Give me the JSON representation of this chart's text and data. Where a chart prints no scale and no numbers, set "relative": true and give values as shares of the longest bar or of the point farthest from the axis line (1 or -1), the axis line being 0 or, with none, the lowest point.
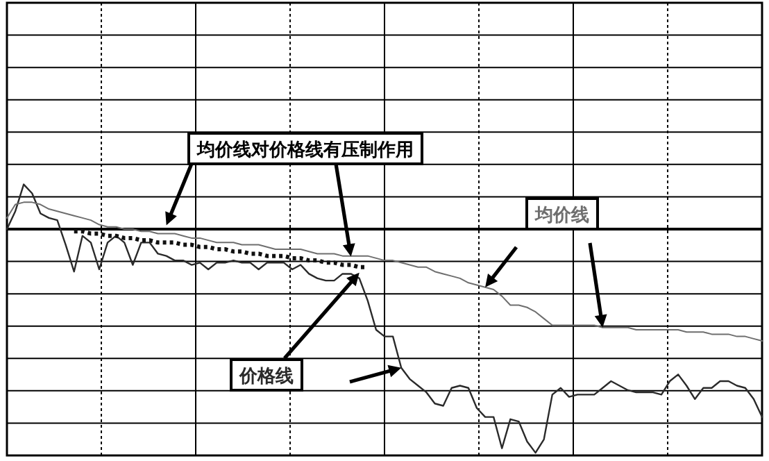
{
  "chart_data": {
    "type": "line",
    "relative": true,
    "grid": true,
    "categories": [
      null,
      null,
      null,
      null,
      null,
      null,
      null,
      null,
      null,
      null,
      null,
      null,
      null,
      null,
      null,
      null,
      null,
      null,
      null,
      null,
      null,
      null,
      null,
      null,
      null,
      null,
      null,
      null,
      null,
      null,
      null,
      null,
      null,
      null,
      null,
      null,
      null,
      null,
      null,
      null,
      null,
      null,
      null,
      null,
      null,
      null,
      null,
      null,
      null,
      null,
      null,
      null,
      null,
      null,
      null,
      null,
      null,
      null,
      null,
      null,
      null,
      null,
      null,
      null,
      null,
      null,
      null,
      null,
      null,
      null,
      null,
      null,
      null,
      null,
      null,
      null,
      null,
      null,
      null,
      null,
      null,
      null,
      null,
      null,
      null,
      null,
      null,
      null,
      null,
      null,
      null
    ],
    "series": [
      {
        "name": "价格线",
        "color": "#2a2a2a",
        "values": [
          0,
          0.08,
          0.2,
          0.16,
          0.07,
          0.05,
          0.04,
          -0.07,
          -0.19,
          -0.03,
          -0.06,
          -0.18,
          -0.06,
          -0.03,
          -0.06,
          -0.16,
          -0.06,
          -0.06,
          -0.11,
          -0.12,
          -0.14,
          -0.14,
          -0.16,
          -0.15,
          -0.18,
          -0.15,
          -0.15,
          -0.14,
          -0.15,
          -0.15,
          -0.18,
          -0.15,
          -0.15,
          -0.15,
          -0.18,
          -0.16,
          -0.2,
          -0.22,
          -0.23,
          -0.23,
          -0.2,
          -0.2,
          -0.22,
          -0.32,
          -0.45,
          -0.48,
          -0.48,
          -0.62,
          -0.67,
          -0.7,
          -0.73,
          -0.78,
          -0.79,
          -0.71,
          -0.7,
          -0.71,
          -0.8,
          -0.84,
          -0.84,
          -0.98,
          -0.85,
          -0.86,
          -0.95,
          -1,
          -0.94,
          -0.74,
          -0.71,
          -0.75,
          -0.74,
          -0.74,
          -0.74,
          -0.71,
          -0.68,
          -0.7,
          -0.72,
          -0.73,
          -0.73,
          -0.73,
          -0.74,
          -0.68,
          -0.65,
          -0.7,
          -0.76,
          -0.71,
          -0.71,
          -0.68,
          -0.68,
          -0.7,
          -0.71,
          -0.76,
          -0.84
        ]
      },
      {
        "name": "均价线",
        "color": "#6e6e6e",
        "values": [
          0.05,
          0.11,
          0.12,
          0.12,
          0.11,
          0.09,
          0.08,
          0.07,
          0.06,
          0.05,
          0.04,
          0.02,
          0.01,
          0.01,
          0,
          0,
          -0.01,
          -0.01,
          -0.02,
          -0.02,
          -0.02,
          -0.03,
          -0.04,
          -0.04,
          -0.05,
          -0.06,
          -0.06,
          -0.06,
          -0.07,
          -0.07,
          -0.07,
          -0.08,
          -0.09,
          -0.09,
          -0.09,
          -0.09,
          -0.1,
          -0.11,
          -0.11,
          -0.11,
          -0.12,
          -0.12,
          -0.12,
          -0.12,
          -0.13,
          -0.14,
          -0.14,
          -0.15,
          -0.16,
          -0.17,
          -0.17,
          -0.19,
          -0.2,
          -0.21,
          -0.22,
          -0.24,
          -0.25,
          -0.26,
          -0.27,
          -0.3,
          -0.34,
          -0.34,
          -0.35,
          -0.37,
          -0.4,
          -0.43,
          -0.43,
          -0.43,
          -0.43,
          -0.43,
          -0.43,
          -0.44,
          -0.44,
          -0.44,
          -0.44,
          -0.45,
          -0.45,
          -0.45,
          -0.45,
          -0.45,
          -0.45,
          -0.46,
          -0.46,
          -0.46,
          -0.47,
          -0.47,
          -0.47,
          -0.48,
          -0.48,
          -0.49,
          -0.5
        ]
      },
      {
        "color": "#111111",
        "line_style": "dotted",
        "values": [
          null,
          null,
          null,
          null,
          null,
          null,
          null,
          null,
          -0.01,
          -0.01,
          -0.02,
          -0.02,
          -0.03,
          -0.03,
          -0.04,
          -0.04,
          -0.05,
          -0.05,
          -0.06,
          -0.06,
          -0.06,
          -0.07,
          -0.07,
          -0.08,
          -0.08,
          -0.09,
          -0.09,
          -0.1,
          -0.1,
          -0.11,
          -0.11,
          -0.12,
          -0.12,
          -0.12,
          -0.13,
          -0.13,
          -0.14,
          -0.14,
          -0.15,
          -0.15,
          -0.16,
          -0.16,
          -0.17,
          -0.17,
          null,
          null,
          null,
          null,
          null,
          null,
          null,
          null,
          null,
          null,
          null,
          null,
          null,
          null,
          null,
          null,
          null,
          null,
          null,
          null,
          null,
          null,
          null,
          null,
          null,
          null,
          null,
          null,
          null,
          null,
          null,
          null,
          null,
          null,
          null,
          null,
          null,
          null,
          null,
          null,
          null,
          null,
          null,
          null,
          null,
          null,
          null
        ]
      }
    ],
    "annotations": [
      "均价线对价格线有压制作用"
    ]
  }
}
